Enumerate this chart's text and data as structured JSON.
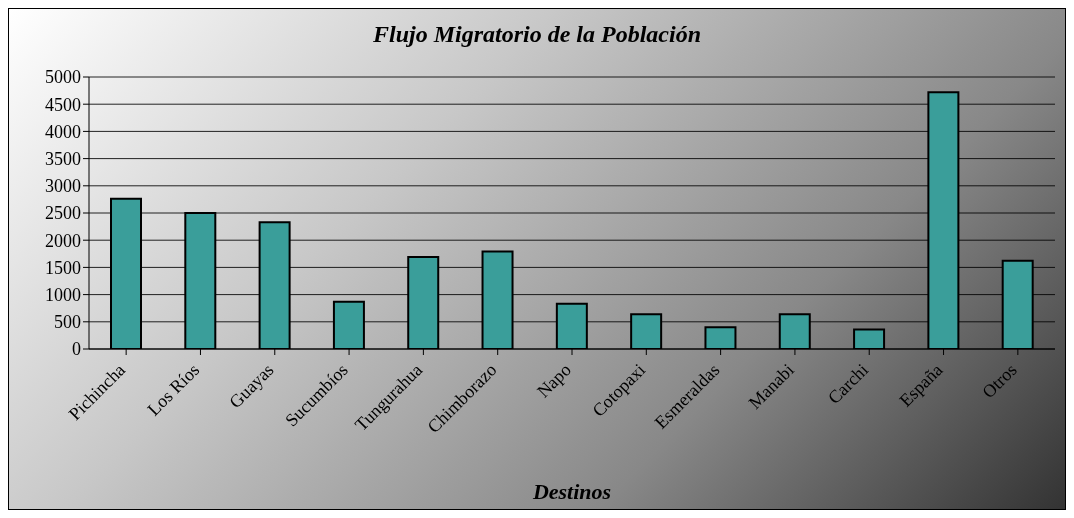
{
  "chart_data": {
    "type": "bar",
    "title": "Flujo Migratorio de la Población",
    "xlabel": "Destinos",
    "categories": [
      "Pichincha",
      "Los Ríos",
      "Guayas",
      "Sucumbíos",
      "Tungurahua",
      "Chimborazo",
      "Napo",
      "Cotopaxi",
      "Esmeraldas",
      "Manabi",
      "Carchi",
      "España",
      "Otros"
    ],
    "values": [
      2760,
      2500,
      2330,
      870,
      1690,
      1790,
      830,
      640,
      400,
      640,
      360,
      4720,
      1620
    ],
    "color": "#3a9e9a",
    "ylim": [
      0,
      5000
    ],
    "yticks": [
      0,
      500,
      1000,
      1500,
      2000,
      2500,
      3000,
      3500,
      4000,
      4500,
      5000
    ],
    "grid": "y"
  }
}
